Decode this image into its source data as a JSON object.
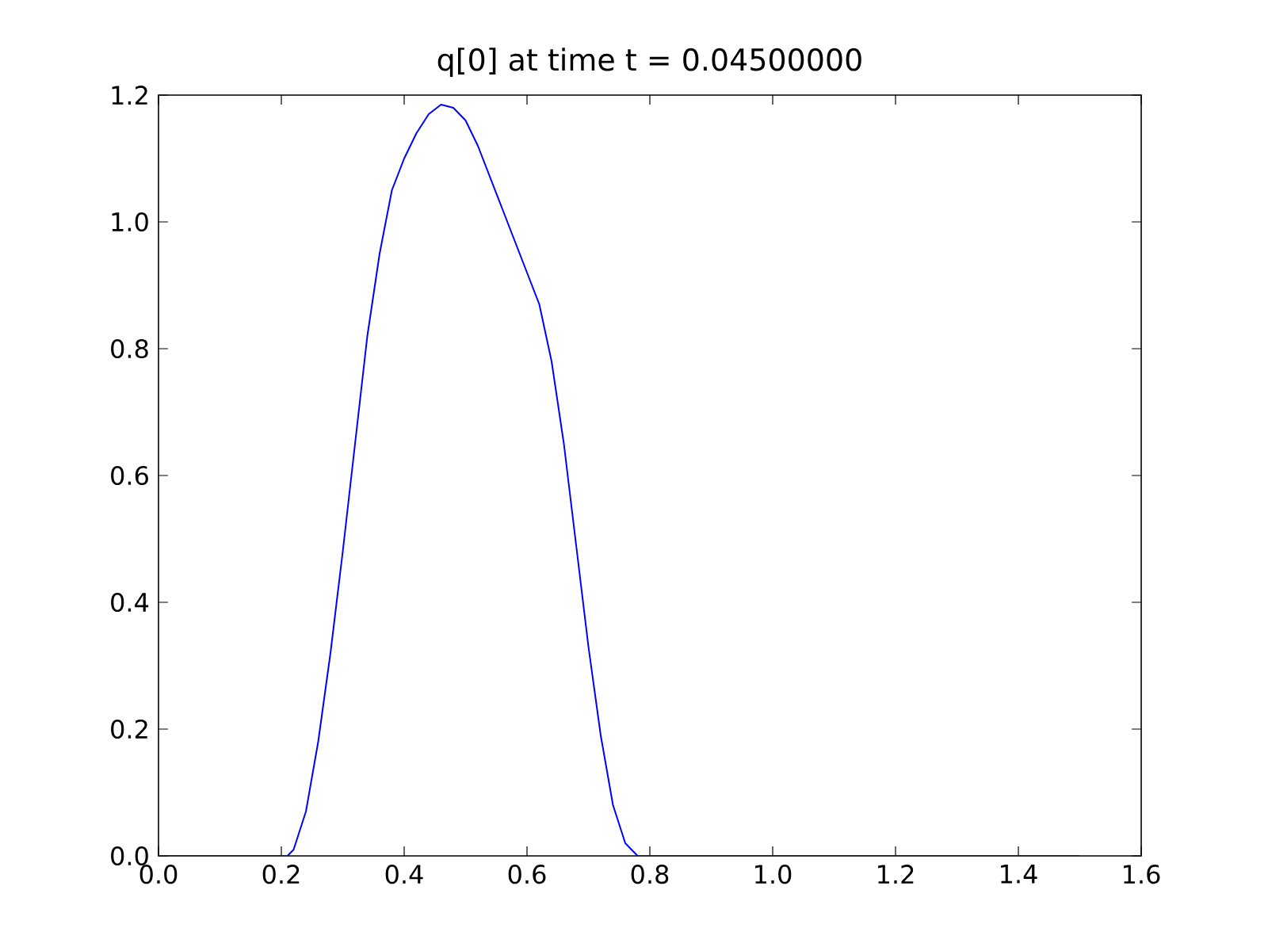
{
  "chart_data": {
    "type": "line",
    "title": "q[0] at time t = 0.04500000",
    "x": [
      0,
      0.21,
      0.22,
      0.24,
      0.26,
      0.28,
      0.3,
      0.32,
      0.34,
      0.36,
      0.38,
      0.4,
      0.42,
      0.44,
      0.46,
      0.48,
      0.5,
      0.52,
      0.54,
      0.56,
      0.58,
      0.6,
      0.62,
      0.64,
      0.66,
      0.68,
      0.7,
      0.72,
      0.74,
      0.76,
      0.78,
      1.5
    ],
    "series": [
      {
        "color": "#0000ff",
        "values": [
          0,
          0,
          0.01,
          0.07,
          0.18,
          0.32,
          0.48,
          0.65,
          0.82,
          0.95,
          1.05,
          1.1,
          1.14,
          1.17,
          1.185,
          1.18,
          1.16,
          1.12,
          1.07,
          1.02,
          0.97,
          0.92,
          0.87,
          0.78,
          0.65,
          0.49,
          0.33,
          0.19,
          0.08,
          0.02,
          0,
          0
        ]
      }
    ],
    "xlim": [
      0,
      1.6
    ],
    "xticks": [
      {
        "value": 0,
        "label": "0.0"
      },
      {
        "value": 0.2,
        "label": "0.2"
      },
      {
        "value": 0.4,
        "label": "0.4"
      },
      {
        "value": 0.6,
        "label": "0.6"
      },
      {
        "value": 0.8,
        "label": "0.8"
      },
      {
        "value": 1.0,
        "label": "1.0"
      },
      {
        "value": 1.2,
        "label": "1.2"
      },
      {
        "value": 1.4,
        "label": "1.4"
      },
      {
        "value": 1.6,
        "label": "1.6"
      }
    ],
    "ylim": [
      0,
      1.2
    ],
    "yticks": [
      {
        "value": 0,
        "label": "0.0"
      },
      {
        "value": 0.2,
        "label": "0.2"
      },
      {
        "value": 0.4,
        "label": "0.4"
      },
      {
        "value": 0.6,
        "label": "0.6"
      },
      {
        "value": 0.8,
        "label": "0.8"
      },
      {
        "value": 1.0,
        "label": "1.0"
      },
      {
        "value": 1.2,
        "label": "1.2"
      }
    ],
    "grid": false,
    "marker": "none",
    "line_style": "solid"
  }
}
